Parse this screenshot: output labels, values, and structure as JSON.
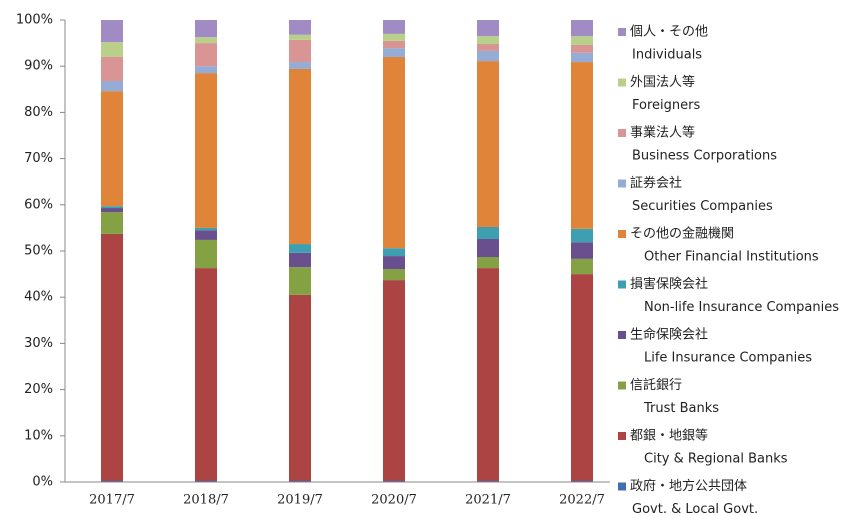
{
  "chart_data": {
    "type": "stacked_bar",
    "categories": [
      "2017/7",
      "2018/7",
      "2019/7",
      "2020/7",
      "2021/7",
      "2022/7"
    ],
    "series": [
      {
        "name": "政府・地方公共団体",
        "name_en": "Govt. & Local Govt.",
        "color": "#3f6fb0",
        "values": [
          0.2,
          0.2,
          0.2,
          0.2,
          0.2,
          0.2
        ]
      },
      {
        "name": "都銀・地銀等",
        "name_en": "City & Regional Banks",
        "color": "#ab4443",
        "values": [
          53.5,
          46.1,
          40.3,
          43.5,
          46.1,
          44.8
        ]
      },
      {
        "name": "信託銀行",
        "name_en": "Trust Banks",
        "color": "#84a244",
        "values": [
          4.7,
          6.1,
          6.0,
          2.4,
          2.4,
          3.3
        ]
      },
      {
        "name": "生命保険会社",
        "name_en": "Life Insurance Companies",
        "color": "#6a4f8f",
        "values": [
          0.9,
          2.1,
          3.1,
          2.8,
          3.9,
          3.6
        ]
      },
      {
        "name": "損害保険会社",
        "name_en": "Non-life Insurance Companies",
        "color": "#3e9fb0",
        "values": [
          0.4,
          0.5,
          1.9,
          1.7,
          2.6,
          2.9
        ]
      },
      {
        "name": "その他の金融機関",
        "name_en": "Other Financial Institutions",
        "color": "#e0843a",
        "values": [
          24.9,
          33.5,
          37.9,
          41.4,
          35.9,
          36.1
        ]
      },
      {
        "name": "証券会社",
        "name_en": "Securities Companies",
        "color": "#94acd6",
        "values": [
          2.2,
          1.5,
          1.5,
          1.9,
          2.2,
          2.0
        ]
      },
      {
        "name": "事業法人等",
        "name_en": "Business Corporations",
        "color": "#d99594",
        "values": [
          5.2,
          5.0,
          4.8,
          1.6,
          1.5,
          1.7
        ]
      },
      {
        "name": "外国法人等",
        "name_en": "Foreigners",
        "color": "#b9d08a",
        "values": [
          3.2,
          1.3,
          1.1,
          1.5,
          1.7,
          1.9
        ]
      },
      {
        "name": "個人・その他",
        "name_en": "Individuals",
        "color": "#a08bc4",
        "values": [
          4.8,
          3.7,
          3.2,
          3.0,
          3.5,
          3.5
        ]
      }
    ],
    "ylim": [
      0,
      100
    ],
    "yticks": [
      {
        "value": 0,
        "label": "0%"
      },
      {
        "value": 10,
        "label": "10%"
      },
      {
        "value": 20,
        "label": "20%"
      },
      {
        "value": 30,
        "label": "30%"
      },
      {
        "value": 40,
        "label": "40%"
      },
      {
        "value": 50,
        "label": "50%"
      },
      {
        "value": 60,
        "label": "60%"
      },
      {
        "value": 70,
        "label": "70%"
      },
      {
        "value": 80,
        "label": "80%"
      },
      {
        "value": 90,
        "label": "90%"
      },
      {
        "value": 100,
        "label": "100%"
      }
    ],
    "legend": "right"
  }
}
